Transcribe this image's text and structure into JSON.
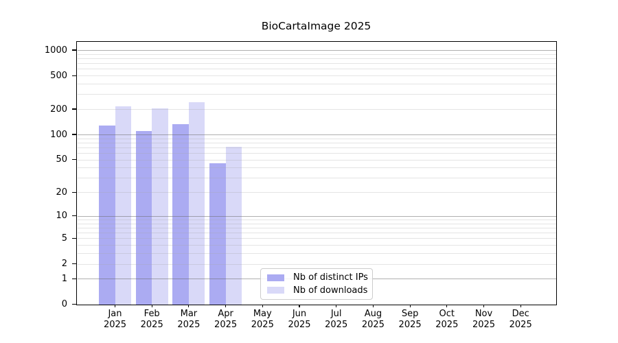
{
  "chart_data": {
    "type": "bar",
    "title": "BioCartaImage 2025",
    "categories": [
      "Jan",
      "Feb",
      "Mar",
      "Apr",
      "May",
      "Jun",
      "Jul",
      "Aug",
      "Sep",
      "Oct",
      "Nov",
      "Dec"
    ],
    "x_year": "2025",
    "series": [
      {
        "name": "Nb of distinct IPs",
        "color": "#ababf2",
        "values": [
          128,
          110,
          133,
          45,
          0,
          0,
          0,
          0,
          0,
          0,
          0,
          0
        ]
      },
      {
        "name": "Nb of downloads",
        "color": "#d9d9f8",
        "values": [
          215,
          205,
          240,
          71,
          0,
          0,
          0,
          0,
          0,
          0,
          0,
          0
        ]
      }
    ],
    "y_ticks": [
      0,
      1,
      2,
      5,
      10,
      20,
      50,
      100,
      200,
      500,
      1000
    ],
    "y_scale": "log1p",
    "ylim": [
      0,
      1220
    ],
    "grid": {
      "major_ticks": [
        1,
        10,
        100,
        1000
      ],
      "major_color": "#a0a0a0",
      "minor_color": "#e6e6e6",
      "grid_on": true
    },
    "legend": {
      "position": "inside-bottom-center",
      "border_color": "#cccccc"
    },
    "background": "#ffffff"
  }
}
